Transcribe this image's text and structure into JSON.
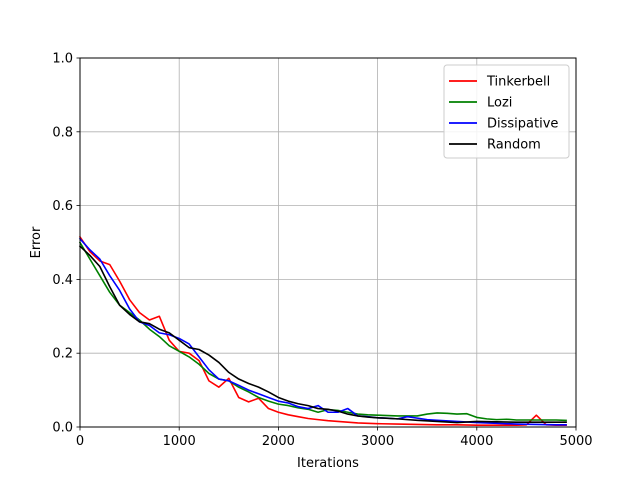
{
  "chart_data": {
    "type": "line",
    "xlabel": "Iterations",
    "ylabel": "Error",
    "xlim": [
      0,
      5000
    ],
    "ylim": [
      0,
      1.0
    ],
    "xticks": [
      "0",
      "1000",
      "2000",
      "3000",
      "4000",
      "5000"
    ],
    "yticks": [
      "0.0",
      "0.2",
      "0.4",
      "0.6",
      "0.8",
      "1.0"
    ],
    "grid": true,
    "legend_position": "top-right",
    "series": [
      {
        "name": "Tinkerbell",
        "color": "#ff0000",
        "x": [
          0,
          100,
          200,
          300,
          400,
          500,
          600,
          700,
          800,
          900,
          1000,
          1100,
          1200,
          1300,
          1400,
          1500,
          1600,
          1700,
          1800,
          1900,
          2000,
          2100,
          2200,
          2300,
          2400,
          2500,
          2600,
          2700,
          2800,
          2900,
          3000,
          3200,
          3400,
          3600,
          3800,
          4000,
          4200,
          4400,
          4500,
          4600,
          4700,
          4800,
          4900
        ],
        "y": [
          0.515,
          0.475,
          0.45,
          0.44,
          0.395,
          0.345,
          0.31,
          0.29,
          0.3,
          0.235,
          0.205,
          0.2,
          0.18,
          0.125,
          0.108,
          0.132,
          0.08,
          0.068,
          0.078,
          0.05,
          0.04,
          0.033,
          0.028,
          0.023,
          0.02,
          0.017,
          0.015,
          0.013,
          0.011,
          0.01,
          0.009,
          0.008,
          0.007,
          0.006,
          0.006,
          0.005,
          0.005,
          0.005,
          0.006,
          0.032,
          0.006,
          0.005,
          0.005
        ]
      },
      {
        "name": "Lozi",
        "color": "#008000",
        "x": [
          0,
          100,
          200,
          300,
          400,
          500,
          600,
          700,
          800,
          900,
          1000,
          1100,
          1200,
          1300,
          1400,
          1500,
          1600,
          1700,
          1800,
          1900,
          2000,
          2100,
          2200,
          2300,
          2400,
          2500,
          2600,
          2700,
          2800,
          2900,
          3000,
          3200,
          3400,
          3500,
          3600,
          3700,
          3800,
          3900,
          4000,
          4100,
          4200,
          4300,
          4400,
          4600,
          4800,
          4900
        ],
        "y": [
          0.5,
          0.455,
          0.41,
          0.365,
          0.33,
          0.31,
          0.29,
          0.265,
          0.245,
          0.22,
          0.205,
          0.19,
          0.17,
          0.145,
          0.13,
          0.125,
          0.108,
          0.095,
          0.08,
          0.07,
          0.062,
          0.058,
          0.052,
          0.048,
          0.04,
          0.047,
          0.045,
          0.04,
          0.035,
          0.033,
          0.032,
          0.03,
          0.03,
          0.035,
          0.038,
          0.037,
          0.035,
          0.036,
          0.026,
          0.022,
          0.02,
          0.021,
          0.019,
          0.019,
          0.019,
          0.018
        ]
      },
      {
        "name": "Dissipative",
        "color": "#0000ff",
        "x": [
          0,
          100,
          200,
          300,
          400,
          500,
          600,
          700,
          800,
          900,
          1000,
          1100,
          1200,
          1300,
          1400,
          1500,
          1600,
          1700,
          1800,
          1900,
          2000,
          2100,
          2200,
          2300,
          2400,
          2500,
          2600,
          2700,
          2800,
          2900,
          3000,
          3100,
          3200,
          3300,
          3400,
          3500,
          3600,
          3800,
          4000,
          4200,
          4400,
          4600,
          4800,
          4900
        ],
        "y": [
          0.51,
          0.48,
          0.455,
          0.41,
          0.37,
          0.32,
          0.285,
          0.275,
          0.255,
          0.25,
          0.24,
          0.225,
          0.19,
          0.155,
          0.13,
          0.125,
          0.113,
          0.1,
          0.09,
          0.08,
          0.07,
          0.065,
          0.055,
          0.05,
          0.058,
          0.04,
          0.04,
          0.05,
          0.03,
          0.028,
          0.025,
          0.024,
          0.022,
          0.028,
          0.024,
          0.02,
          0.018,
          0.015,
          0.012,
          0.01,
          0.008,
          0.007,
          0.006,
          0.006
        ]
      },
      {
        "name": "Random",
        "color": "#000000",
        "x": [
          0,
          100,
          200,
          300,
          400,
          500,
          600,
          700,
          800,
          900,
          1000,
          1100,
          1200,
          1300,
          1400,
          1500,
          1600,
          1700,
          1800,
          1900,
          2000,
          2100,
          2200,
          2300,
          2400,
          2500,
          2600,
          2700,
          2800,
          2900,
          3000,
          3200,
          3400,
          3600,
          3800,
          4000,
          4200,
          4400,
          4600,
          4800,
          4900
        ],
        "y": [
          0.49,
          0.465,
          0.435,
          0.38,
          0.33,
          0.305,
          0.285,
          0.28,
          0.265,
          0.255,
          0.235,
          0.215,
          0.21,
          0.195,
          0.175,
          0.148,
          0.13,
          0.118,
          0.108,
          0.095,
          0.08,
          0.07,
          0.063,
          0.058,
          0.05,
          0.048,
          0.043,
          0.035,
          0.03,
          0.027,
          0.025,
          0.022,
          0.018,
          0.015,
          0.012,
          0.015,
          0.014,
          0.013,
          0.013,
          0.013,
          0.013
        ]
      }
    ]
  }
}
